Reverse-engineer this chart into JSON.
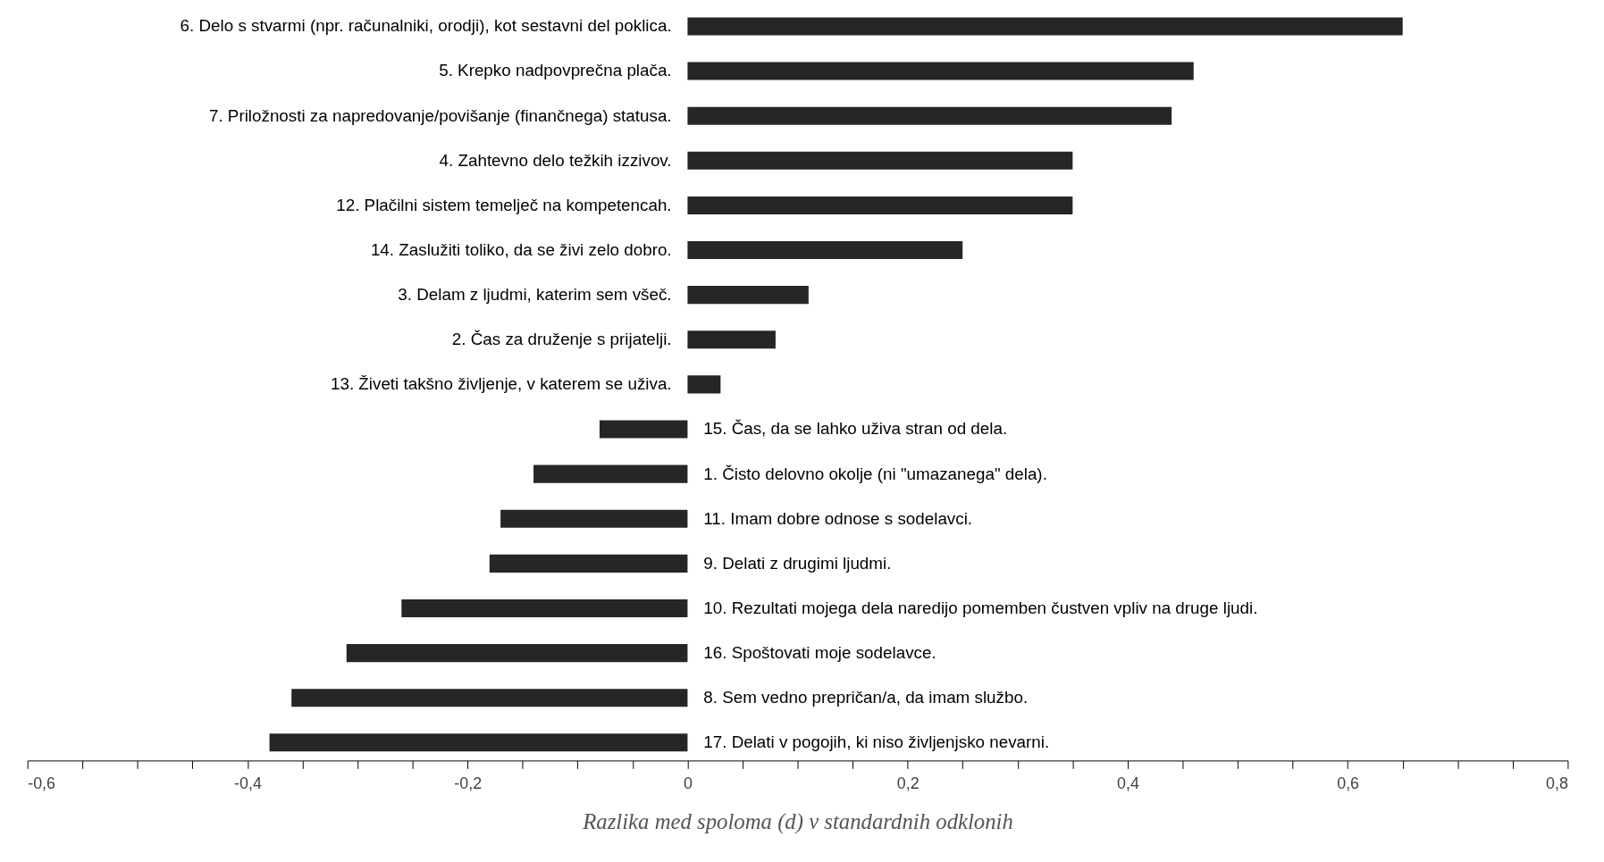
{
  "chart_data": {
    "type": "bar",
    "orientation": "horizontal",
    "xlabel": "Razlika med spoloma (d) v standardnih odklonih",
    "categories": [
      "6. Delo s stvarmi (npr. računalniki, orodji), kot sestavni del poklica.",
      "5. Krepko nadpovprečna plača.",
      "7. Priložnosti za napredovanje/povišanje (finančnega) statusa.",
      "4. Zahtevno delo težkih izzivov.",
      "12. Plačilni sistem temelječ na kompetencah.",
      "14. Zaslužiti toliko, da se živi zelo dobro.",
      "3. Delam z ljudmi, katerim sem všeč.",
      "2. Čas za druženje s prijatelji.",
      "13. Živeti takšno življenje, v katerem se uživa.",
      "15. Čas, da se lahko uživa stran od dela.",
      "1. Čisto delovno okolje (ni \"umazanega\" dela).",
      "11. Imam dobre odnose s sodelavci.",
      "9. Delati z drugimi ljudmi.",
      "10. Rezultati mojega dela naredijo pomemben čustven vpliv na druge ljudi.",
      "16. Spoštovati moje sodelavce.",
      "8. Sem vedno prepričan/a, da imam službo.",
      "17. Delati v pogojih, ki niso življenjsko nevarni."
    ],
    "values": [
      0.65,
      0.46,
      0.44,
      0.35,
      0.35,
      0.25,
      0.11,
      0.08,
      0.03,
      -0.08,
      -0.14,
      -0.17,
      -0.18,
      -0.26,
      -0.31,
      -0.36,
      -0.38
    ],
    "color": "#262626",
    "xlim": [
      -0.6,
      0.8
    ],
    "xticks": [
      {
        "value": -0.6,
        "label": "-0,6"
      },
      {
        "value": -0.55,
        "label": null
      },
      {
        "value": -0.5,
        "label": null
      },
      {
        "value": -0.45,
        "label": null
      },
      {
        "value": -0.4,
        "label": "-0,4"
      },
      {
        "value": -0.35,
        "label": null
      },
      {
        "value": -0.3,
        "label": null
      },
      {
        "value": -0.25,
        "label": null
      },
      {
        "value": -0.2,
        "label": "-0,2"
      },
      {
        "value": -0.15,
        "label": null
      },
      {
        "value": -0.1,
        "label": null
      },
      {
        "value": -0.05,
        "label": null
      },
      0,
      {
        "value": 0.05,
        "label": null
      },
      {
        "value": 0.1,
        "label": null
      },
      {
        "value": 0.15,
        "label": null
      },
      {
        "value": 0.2,
        "label": "0,2"
      },
      {
        "value": 0.25,
        "label": null
      },
      {
        "value": 0.3,
        "label": null
      },
      {
        "value": 0.35,
        "label": null
      },
      {
        "value": 0.4,
        "label": "0,4"
      },
      {
        "value": 0.45,
        "label": null
      },
      {
        "value": 0.5,
        "label": null
      },
      {
        "value": 0.55,
        "label": null
      },
      {
        "value": 0.6,
        "label": "0,6"
      },
      {
        "value": 0.65,
        "label": null
      },
      {
        "value": 0.7,
        "label": null
      },
      {
        "value": 0.75,
        "label": null
      },
      {
        "value": 0.8,
        "label": "0,8"
      }
    ],
    "grid": false
  }
}
